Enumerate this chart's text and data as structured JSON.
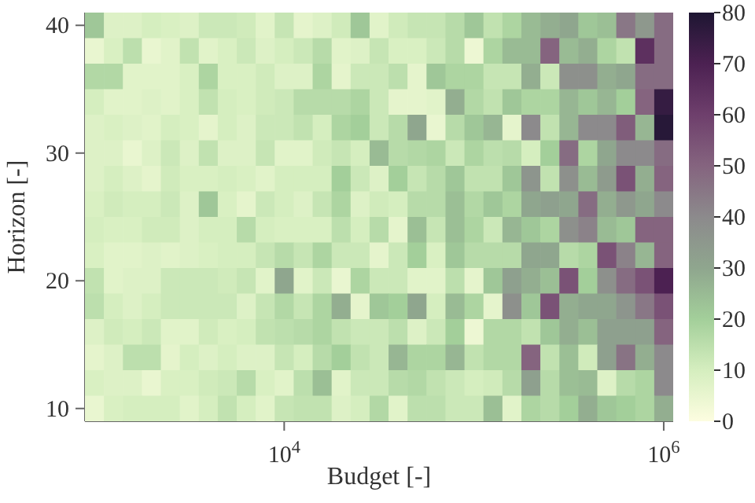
{
  "chart_data": {
    "type": "heatmap",
    "xlabel": "Budget [-]",
    "ylabel": "Horizon [-]",
    "categories": [
      null,
      null,
      null,
      null,
      null,
      null,
      null,
      null,
      null,
      null,
      "10$^{4}$",
      null,
      null,
      null,
      null,
      null,
      null,
      null,
      null,
      null,
      null,
      null,
      null,
      null,
      null,
      null,
      null,
      null,
      null,
      null,
      "10$^{6}$"
    ],
    "y_categories": [
      "40",
      null,
      null,
      null,
      null,
      "30",
      null,
      null,
      null,
      null,
      "20",
      null,
      null,
      null,
      null,
      "10"
    ],
    "clim": [
      0,
      80
    ],
    "cticks": [
      0,
      10,
      20,
      30,
      40,
      50,
      60,
      70,
      80
    ],
    "cells": [
      [
        22,
        8,
        8,
        10,
        9,
        8,
        12,
        12,
        11,
        7,
        13,
        6,
        8,
        11,
        22,
        7,
        11,
        13,
        13,
        16,
        22,
        14,
        18,
        25,
        28,
        30,
        22,
        24,
        45,
        35,
        48
      ],
      [
        5,
        9,
        15,
        5,
        7,
        14,
        7,
        9,
        12,
        8,
        10,
        12,
        16,
        7,
        8,
        13,
        9,
        9,
        12,
        16,
        4,
        18,
        25,
        25,
        50,
        25,
        28,
        18,
        14,
        65,
        48
      ],
      [
        17,
        17,
        7,
        7,
        7,
        9,
        18,
        9,
        9,
        11,
        8,
        8,
        18,
        6,
        12,
        12,
        15,
        6,
        22,
        18,
        18,
        13,
        13,
        28,
        12,
        38,
        38,
        28,
        30,
        48,
        48
      ],
      [
        10,
        7,
        7,
        8,
        7,
        9,
        14,
        10,
        9,
        11,
        12,
        16,
        16,
        16,
        18,
        12,
        6,
        6,
        7,
        28,
        17,
        14,
        22,
        18,
        18,
        26,
        22,
        26,
        20,
        50,
        75
      ],
      [
        8,
        9,
        8,
        7,
        10,
        9,
        6,
        10,
        8,
        12,
        12,
        14,
        10,
        18,
        20,
        12,
        16,
        30,
        5,
        16,
        22,
        26,
        6,
        40,
        14,
        26,
        40,
        40,
        52,
        26,
        78
      ],
      [
        8,
        8,
        5,
        8,
        12,
        8,
        14,
        8,
        8,
        13,
        7,
        7,
        11,
        13,
        10,
        25,
        16,
        17,
        18,
        12,
        18,
        15,
        16,
        10,
        20,
        48,
        18,
        30,
        40,
        40,
        48
      ],
      [
        8,
        10,
        8,
        6,
        11,
        9,
        9,
        10,
        9,
        7,
        10,
        10,
        10,
        20,
        12,
        8,
        20,
        13,
        16,
        22,
        14,
        14,
        22,
        36,
        14,
        38,
        25,
        34,
        55,
        28,
        50
      ],
      [
        9,
        11,
        10,
        10,
        12,
        8,
        22,
        9,
        6,
        12,
        10,
        8,
        13,
        18,
        8,
        11,
        10,
        16,
        16,
        24,
        17,
        22,
        18,
        30,
        32,
        30,
        48,
        28,
        35,
        30,
        40
      ],
      [
        10,
        9,
        9,
        11,
        11,
        8,
        10,
        10,
        16,
        10,
        9,
        9,
        9,
        15,
        10,
        16,
        6,
        24,
        13,
        24,
        18,
        12,
        26,
        22,
        18,
        38,
        42,
        25,
        22,
        50,
        50
      ],
      [
        9,
        7,
        7,
        8,
        7,
        8,
        9,
        10,
        10,
        13,
        16,
        13,
        18,
        12,
        12,
        6,
        12,
        20,
        9,
        22,
        16,
        16,
        16,
        30,
        30,
        16,
        18,
        55,
        42,
        26,
        50
      ],
      [
        14,
        7,
        8,
        8,
        12,
        12,
        12,
        11,
        13,
        7,
        30,
        7,
        12,
        5,
        18,
        12,
        12,
        7,
        7,
        15,
        6,
        22,
        32,
        28,
        24,
        55,
        20,
        38,
        48,
        55,
        70
      ],
      [
        15,
        10,
        8,
        10,
        12,
        12,
        12,
        12,
        8,
        13,
        17,
        13,
        18,
        28,
        6,
        22,
        20,
        30,
        10,
        25,
        18,
        6,
        38,
        22,
        55,
        28,
        30,
        30,
        36,
        45,
        55
      ],
      [
        8,
        11,
        10,
        12,
        7,
        7,
        11,
        9,
        10,
        14,
        15,
        16,
        18,
        14,
        12,
        12,
        15,
        8,
        12,
        20,
        4,
        17,
        17,
        14,
        22,
        28,
        24,
        32,
        32,
        32,
        50
      ],
      [
        6,
        8,
        15,
        15,
        6,
        10,
        8,
        10,
        8,
        8,
        13,
        10,
        16,
        20,
        14,
        12,
        26,
        18,
        18,
        26,
        14,
        17,
        17,
        50,
        14,
        24,
        11,
        32,
        46,
        28,
        40
      ],
      [
        9,
        8,
        8,
        5,
        9,
        9,
        11,
        12,
        16,
        9,
        7,
        15,
        24,
        7,
        12,
        12,
        16,
        17,
        14,
        12,
        10,
        11,
        16,
        32,
        16,
        24,
        25,
        8,
        16,
        18,
        40
      ],
      [
        5,
        9,
        10,
        10,
        10,
        7,
        10,
        14,
        10,
        7,
        13,
        14,
        14,
        8,
        10,
        17,
        7,
        15,
        15,
        12,
        12,
        24,
        7,
        18,
        16,
        20,
        28,
        22,
        20,
        18,
        28
      ]
    ]
  }
}
